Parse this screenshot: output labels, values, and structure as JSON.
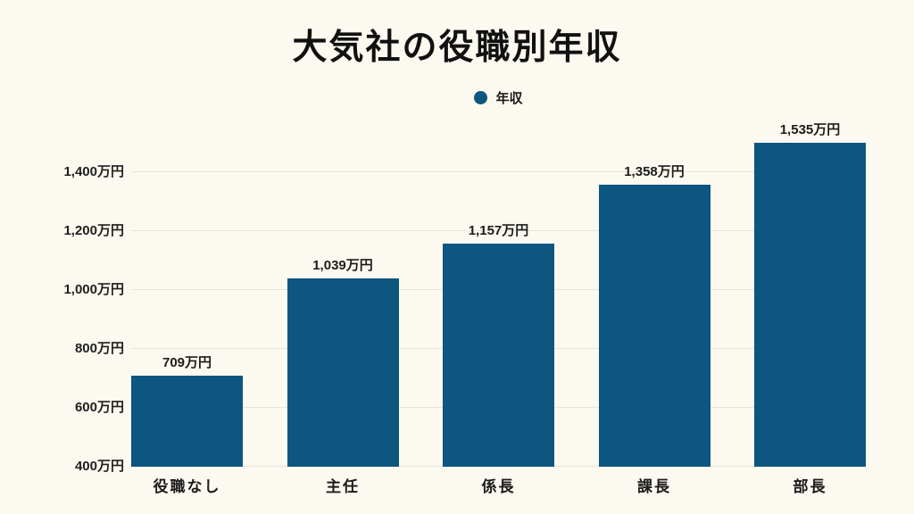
{
  "page": {
    "background_color": "#FCF9F0",
    "text_color": "#1C1C1C"
  },
  "chart_data": {
    "type": "bar",
    "title": "大気社の役職別年収",
    "legend": {
      "label": "年収",
      "position": "top",
      "marker": "circle-icon"
    },
    "categories": [
      "役職なし",
      "主任",
      "係長",
      "課長",
      "部長"
    ],
    "values": [
      709,
      1039,
      1157,
      1358,
      1535
    ],
    "value_labels": [
      "709万円",
      "1,039万円",
      "1,157万円",
      "1,358万円",
      "1,535万円"
    ],
    "unit": "万円",
    "ylim": [
      400,
      1500
    ],
    "ytick_values": [
      400,
      600,
      800,
      1000,
      1200,
      1400
    ],
    "ytick_labels": [
      "400万円",
      "600万円",
      "800万円",
      "1,000万円",
      "1,200万円",
      "1,400万円"
    ],
    "grid": true,
    "bar_color": "#0C5680",
    "grid_color": "#E7E4DB"
  }
}
